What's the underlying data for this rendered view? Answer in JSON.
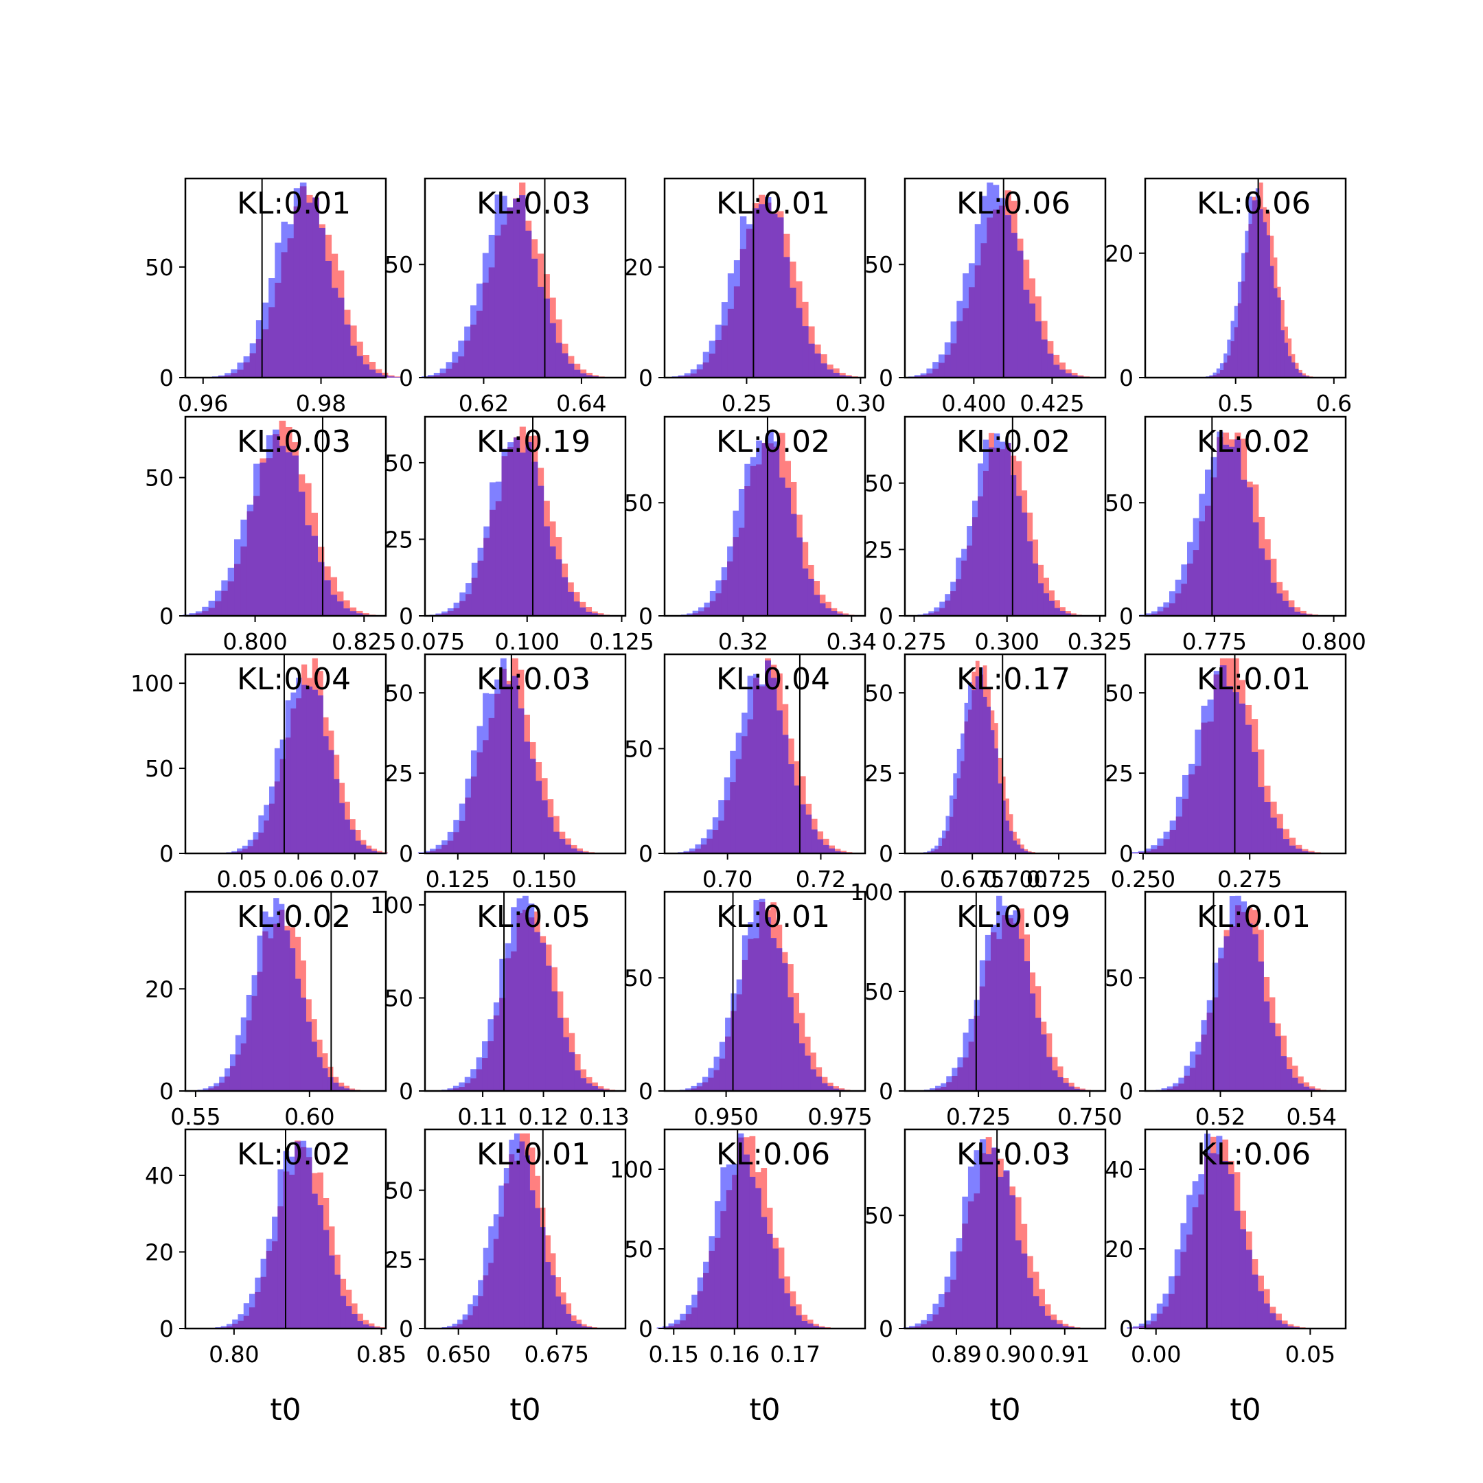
{
  "chart_data": [
    {
      "type": "histogram",
      "kl_label": "KL:0.01",
      "xlim": [
        0.957,
        0.991
      ],
      "ylim": [
        0,
        90
      ],
      "xticks": [
        0.96,
        0.98
      ],
      "xtick_labels": [
        "0.96",
        "0.98"
      ],
      "yticks": [
        0,
        50
      ],
      "ytick_labels": [
        "0",
        "50"
      ],
      "true_value": 0.97,
      "posterior_mean": 0.9775,
      "posterior_sd": 0.0047,
      "xlabel": ""
    },
    {
      "type": "histogram",
      "kl_label": "KL:0.03",
      "xlim": [
        0.608,
        0.649
      ],
      "ylim": [
        0,
        88
      ],
      "xticks": [
        0.62,
        0.64
      ],
      "xtick_labels": [
        "0.62",
        "0.64"
      ],
      "yticks": [
        0,
        50
      ],
      "ytick_labels": [
        "0",
        "50"
      ],
      "true_value": 0.6325,
      "posterior_mean": 0.626,
      "posterior_sd": 0.0055,
      "xlabel": ""
    },
    {
      "type": "histogram",
      "kl_label": "KL:0.01",
      "xlim": [
        0.214,
        0.302
      ],
      "ylim": [
        0,
        36
      ],
      "xticks": [
        0.25,
        0.3
      ],
      "xtick_labels": [
        "0.25",
        "0.30"
      ],
      "yticks": [
        0,
        20
      ],
      "ytick_labels": [
        "0",
        "20"
      ],
      "true_value": 0.253,
      "posterior_mean": 0.258,
      "posterior_sd": 0.012,
      "xlabel": ""
    },
    {
      "type": "histogram",
      "kl_label": "KL:0.06",
      "xlim": [
        0.378,
        0.442
      ],
      "ylim": [
        0,
        88
      ],
      "xticks": [
        0.4,
        0.425
      ],
      "xtick_labels": [
        "0.400",
        "0.425"
      ],
      "yticks": [
        0,
        50
      ],
      "ytick_labels": [
        "0",
        "50"
      ],
      "true_value": 0.4095,
      "posterior_mean": 0.408,
      "posterior_sd": 0.0085,
      "xlabel": ""
    },
    {
      "type": "histogram",
      "kl_label": "KL:0.06",
      "xlim": [
        0.408,
        0.612
      ],
      "ylim": [
        0,
        32
      ],
      "xticks": [
        0.5,
        0.6
      ],
      "xtick_labels": [
        "0.5",
        "0.6"
      ],
      "yticks": [
        0,
        20
      ],
      "ytick_labels": [
        "0",
        "20"
      ],
      "true_value": 0.523,
      "posterior_mean": 0.524,
      "posterior_sd": 0.016,
      "xlabel": ""
    },
    {
      "type": "histogram",
      "kl_label": "KL:0.03",
      "xlim": [
        0.784,
        0.83
      ],
      "ylim": [
        0,
        72
      ],
      "xticks": [
        0.8,
        0.825
      ],
      "xtick_labels": [
        "0.800",
        "0.825"
      ],
      "yticks": [
        0,
        50
      ],
      "ytick_labels": [
        "0",
        "50"
      ],
      "true_value": 0.8155,
      "posterior_mean": 0.8055,
      "posterior_sd": 0.0065,
      "xlabel": ""
    },
    {
      "type": "histogram",
      "kl_label": "KL:0.19",
      "xlim": [
        0.073,
        0.126
      ],
      "ylim": [
        0,
        65
      ],
      "xticks": [
        0.075,
        0.1,
        0.125
      ],
      "xtick_labels": [
        "0.075",
        "0.100",
        "0.125"
      ],
      "yticks": [
        0,
        25,
        50
      ],
      "ytick_labels": [
        "0",
        "25",
        "50"
      ],
      "true_value": 0.1015,
      "posterior_mean": 0.098,
      "posterior_sd": 0.007,
      "xlabel": ""
    },
    {
      "type": "histogram",
      "kl_label": "KL:0.02",
      "xlim": [
        0.3055,
        0.3425
      ],
      "ylim": [
        0,
        88
      ],
      "xticks": [
        0.32,
        0.34
      ],
      "xtick_labels": [
        "0.32",
        "0.34"
      ],
      "yticks": [
        0,
        50
      ],
      "ytick_labels": [
        "0",
        "50"
      ],
      "true_value": 0.3245,
      "posterior_mean": 0.3245,
      "posterior_sd": 0.0047,
      "xlabel": ""
    },
    {
      "type": "histogram",
      "kl_label": "KL:0.02",
      "xlim": [
        0.2725,
        0.3265
      ],
      "ylim": [
        0,
        75
      ],
      "xticks": [
        0.275,
        0.3,
        0.325
      ],
      "xtick_labels": [
        "0.275",
        "0.300",
        "0.325"
      ],
      "yticks": [
        0,
        25,
        50
      ],
      "ytick_labels": [
        "0",
        "25",
        "50"
      ],
      "true_value": 0.3015,
      "posterior_mean": 0.298,
      "posterior_sd": 0.0065,
      "xlabel": ""
    },
    {
      "type": "histogram",
      "kl_label": "KL:0.02",
      "xlim": [
        0.7605,
        0.8025
      ],
      "ylim": [
        0,
        88
      ],
      "xticks": [
        0.775,
        0.8
      ],
      "xtick_labels": [
        "0.775",
        "0.800"
      ],
      "yticks": [
        0,
        50
      ],
      "ytick_labels": [
        "0",
        "50"
      ],
      "true_value": 0.7745,
      "posterior_mean": 0.778,
      "posterior_sd": 0.0055,
      "xlabel": ""
    },
    {
      "type": "histogram",
      "kl_label": "KL:0.04",
      "xlim": [
        0.04,
        0.0755
      ],
      "ylim": [
        0,
        117
      ],
      "xticks": [
        0.05,
        0.06,
        0.07
      ],
      "xtick_labels": [
        "0.05",
        "0.06",
        "0.07"
      ],
      "yticks": [
        0,
        50,
        100
      ],
      "ytick_labels": [
        "0",
        "50",
        "100"
      ],
      "true_value": 0.0575,
      "posterior_mean": 0.0615,
      "posterior_sd": 0.0042,
      "xlabel": ""
    },
    {
      "type": "histogram",
      "kl_label": "KL:0.03",
      "xlim": [
        0.1155,
        0.1735
      ],
      "ylim": [
        0,
        62
      ],
      "xticks": [
        0.125,
        0.15
      ],
      "xtick_labels": [
        "0.125",
        "0.150"
      ],
      "yticks": [
        0,
        25,
        50
      ],
      "ytick_labels": [
        "0",
        "25",
        "50"
      ],
      "true_value": 0.1405,
      "posterior_mean": 0.139,
      "posterior_sd": 0.0075,
      "xlabel": ""
    },
    {
      "type": "histogram",
      "kl_label": "KL:0.04",
      "xlim": [
        0.6865,
        0.7295
      ],
      "ylim": [
        0,
        95
      ],
      "xticks": [
        0.7,
        0.72
      ],
      "xtick_labels": [
        "0.70",
        "0.72"
      ],
      "yticks": [
        0,
        50
      ],
      "ytick_labels": [
        "0",
        "50"
      ],
      "true_value": 0.7155,
      "posterior_mean": 0.708,
      "posterior_sd": 0.0055,
      "xlabel": ""
    },
    {
      "type": "histogram",
      "kl_label": "KL:0.17",
      "xlim": [
        0.636,
        0.752
      ],
      "ylim": [
        0,
        62
      ],
      "xticks": [
        0.675,
        0.7,
        0.725
      ],
      "xtick_labels": [
        "0.675",
        "0.700",
        "0.725"
      ],
      "yticks": [
        0,
        25,
        50
      ],
      "ytick_labels": [
        "0",
        "25",
        "50"
      ],
      "true_value": 0.6925,
      "posterior_mean": 0.679,
      "posterior_sd": 0.0095,
      "xlabel": ""
    },
    {
      "type": "histogram",
      "kl_label": "KL:0.01",
      "xlim": [
        0.2505,
        0.2975
      ],
      "ylim": [
        0,
        62
      ],
      "xticks": [
        0.25,
        0.275
      ],
      "xtick_labels": [
        "0.250",
        "0.275"
      ],
      "yticks": [
        0,
        25,
        50
      ],
      "ytick_labels": [
        "0",
        "25",
        "50"
      ],
      "true_value": 0.2715,
      "posterior_mean": 0.2695,
      "posterior_sd": 0.0065,
      "xlabel": ""
    },
    {
      "type": "histogram",
      "kl_label": "KL:0.02",
      "xlim": [
        0.5455,
        0.6335
      ],
      "ylim": [
        0,
        39
      ],
      "xticks": [
        0.55,
        0.6
      ],
      "xtick_labels": [
        "0.55",
        "0.60"
      ],
      "yticks": [
        0,
        20
      ],
      "ytick_labels": [
        "0",
        "20"
      ],
      "true_value": 0.6095,
      "posterior_mean": 0.5865,
      "posterior_sd": 0.0105,
      "xlabel": ""
    },
    {
      "type": "histogram",
      "kl_label": "KL:0.05",
      "xlim": [
        0.1005,
        0.1335
      ],
      "ylim": [
        0,
        107
      ],
      "xticks": [
        0.11,
        0.12,
        0.13
      ],
      "xtick_labels": [
        "0.11",
        "0.12",
        "0.13"
      ],
      "yticks": [
        0,
        50,
        100
      ],
      "ytick_labels": [
        "0",
        "50",
        "100"
      ],
      "true_value": 0.1135,
      "posterior_mean": 0.1175,
      "posterior_sd": 0.0042,
      "xlabel": ""
    },
    {
      "type": "histogram",
      "kl_label": "KL:0.01",
      "xlim": [
        0.9365,
        0.9805
      ],
      "ylim": [
        0,
        88
      ],
      "xticks": [
        0.95,
        0.975
      ],
      "xtick_labels": [
        "0.950",
        "0.975"
      ],
      "yticks": [
        0,
        50
      ],
      "ytick_labels": [
        "0",
        "50"
      ],
      "true_value": 0.9515,
      "posterior_mean": 0.9585,
      "posterior_sd": 0.0055,
      "xlabel": ""
    },
    {
      "type": "histogram",
      "kl_label": "KL:0.09",
      "xlim": [
        0.7085,
        0.7535
      ],
      "ylim": [
        0,
        100
      ],
      "xticks": [
        0.725,
        0.75
      ],
      "xtick_labels": [
        "0.725",
        "0.750"
      ],
      "yticks": [
        0,
        50,
        100
      ],
      "ytick_labels": [
        "0",
        "50",
        "100"
      ],
      "true_value": 0.7245,
      "posterior_mean": 0.7315,
      "posterior_sd": 0.0055,
      "xlabel": ""
    },
    {
      "type": "histogram",
      "kl_label": "KL:0.01",
      "xlim": [
        0.5035,
        0.5475
      ],
      "ylim": [
        0,
        88
      ],
      "xticks": [
        0.52,
        0.54
      ],
      "xtick_labels": [
        "0.52",
        "0.54"
      ],
      "yticks": [
        0,
        50
      ],
      "ytick_labels": [
        "0",
        "50"
      ],
      "true_value": 0.5185,
      "posterior_mean": 0.5245,
      "posterior_sd": 0.0055,
      "xlabel": ""
    },
    {
      "type": "histogram",
      "kl_label": "KL:0.02",
      "xlim": [
        0.7835,
        0.8515
      ],
      "ylim": [
        0,
        52
      ],
      "xticks": [
        0.8,
        0.85
      ],
      "xtick_labels": [
        "0.80",
        "0.85"
      ],
      "yticks": [
        0,
        20,
        40
      ],
      "ytick_labels": [
        "0",
        "20",
        "40"
      ],
      "true_value": 0.8175,
      "posterior_mean": 0.8225,
      "posterior_sd": 0.0085,
      "xlabel": "t0"
    },
    {
      "type": "histogram",
      "kl_label": "KL:0.01",
      "xlim": [
        0.6415,
        0.6925
      ],
      "ylim": [
        0,
        72
      ],
      "xticks": [
        0.65,
        0.675
      ],
      "xtick_labels": [
        "0.650",
        "0.675"
      ],
      "yticks": [
        0,
        25,
        50
      ],
      "ytick_labels": [
        "0",
        "25",
        "50"
      ],
      "true_value": 0.6715,
      "posterior_mean": 0.6655,
      "posterior_sd": 0.0058,
      "xlabel": "t0"
    },
    {
      "type": "histogram",
      "kl_label": "KL:0.06",
      "xlim": [
        0.1485,
        0.1815
      ],
      "ylim": [
        0,
        125
      ],
      "xticks": [
        0.15,
        0.16,
        0.17
      ],
      "xtick_labels": [
        "0.15",
        "0.16",
        "0.17"
      ],
      "yticks": [
        0,
        50,
        100
      ],
      "ytick_labels": [
        "0",
        "50",
        "100"
      ],
      "true_value": 0.1605,
      "posterior_mean": 0.1615,
      "posterior_sd": 0.0042,
      "xlabel": "t0"
    },
    {
      "type": "histogram",
      "kl_label": "KL:0.03",
      "xlim": [
        0.8805,
        0.9175
      ],
      "ylim": [
        0,
        88
      ],
      "xticks": [
        0.89,
        0.9,
        0.91
      ],
      "xtick_labels": [
        "0.89",
        "0.90",
        "0.91"
      ],
      "yticks": [
        0,
        50
      ],
      "ytick_labels": [
        "0",
        "50"
      ],
      "true_value": 0.8975,
      "posterior_mean": 0.8965,
      "posterior_sd": 0.0048,
      "xlabel": "t0"
    },
    {
      "type": "histogram",
      "kl_label": "KL:0.06",
      "xlim": [
        -0.0035,
        0.0615
      ],
      "ylim": [
        0,
        50
      ],
      "xticks": [
        0.0,
        0.05
      ],
      "xtick_labels": [
        "0.00",
        "0.05"
      ],
      "yticks": [
        0,
        20,
        40
      ],
      "ytick_labels": [
        "0",
        "20",
        "40"
      ],
      "true_value": 0.0165,
      "posterior_mean": 0.0195,
      "posterior_sd": 0.0085,
      "xlabel": "t0"
    }
  ],
  "series_colors": {
    "red": "#ff8080",
    "blue": "#8080ff",
    "overlap": "#7f3fbf"
  },
  "bins": 30
}
